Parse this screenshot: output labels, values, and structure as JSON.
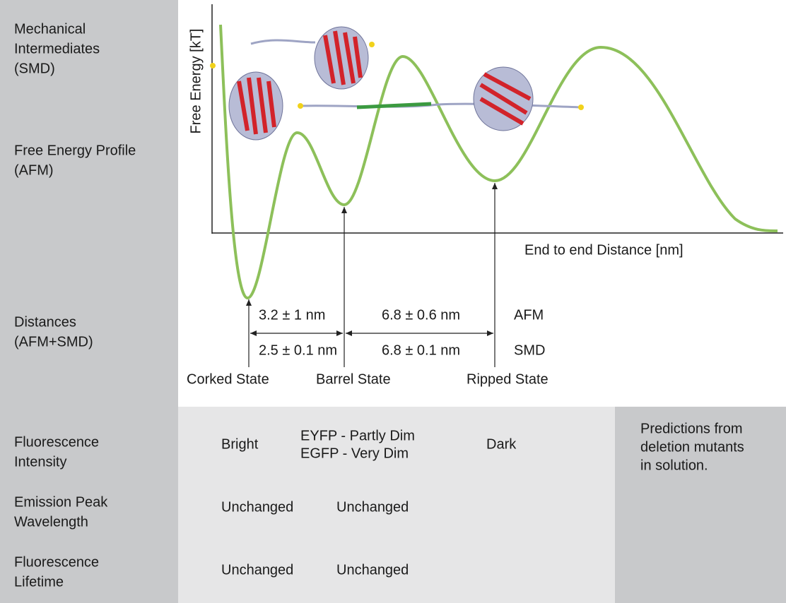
{
  "row_labels": [
    [
      "Mechanical",
      "Intermediates",
      "(SMD)"
    ],
    [
      "Free Energy Profile",
      "(AFM)"
    ],
    [
      "Distances",
      "(AFM+SMD)"
    ],
    [
      "Fluorescence",
      "Intensity"
    ],
    [
      "Emission Peak",
      "Wavelength"
    ],
    [
      "Fluorescence",
      "Lifetime"
    ]
  ],
  "plot": {
    "y_axis_label": "Free Energy [kT]",
    "x_axis_label": "End to end Distance [nm]"
  },
  "distances": [
    {
      "method": "AFM",
      "values": [
        "3.2 ± 1 nm",
        "6.8 ± 0.6 nm"
      ]
    },
    {
      "method": "SMD",
      "values": [
        "2.5 ± 0.1 nm",
        "6.8 ± 0.1 nm"
      ]
    }
  ],
  "states": [
    "Corked State",
    "Barrel State",
    "Ripped State"
  ],
  "fluorescence_intensity": [
    "Bright",
    [
      "EYFP - Partly Dim",
      "EGFP - Very Dim"
    ],
    "Dark"
  ],
  "emission_peak_wavelength": [
    "Unchanged",
    "Unchanged"
  ],
  "fluorescence_lifetime": [
    "Unchanged",
    "Unchanged"
  ],
  "note": [
    "Predictions from",
    "deletion mutants",
    "in solution."
  ]
}
